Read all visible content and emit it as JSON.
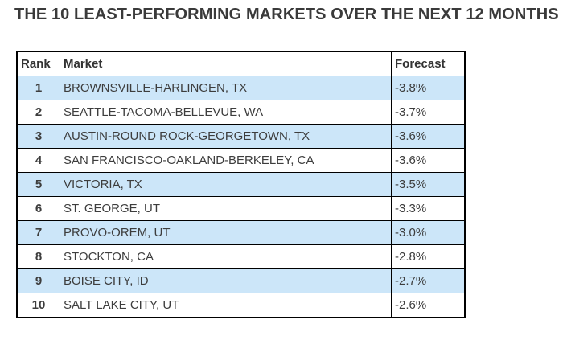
{
  "chart_data": {
    "type": "table",
    "title": "THE 10 LEAST-PERFORMING MARKETS OVER THE NEXT 12 MONTHS",
    "columns": [
      "Rank",
      "Market",
      "Forecast"
    ],
    "rows": [
      {
        "rank": "1",
        "market": "BROWNSVILLE-HARLINGEN, TX",
        "forecast": "-3.8%",
        "highlighted": true
      },
      {
        "rank": "2",
        "market": "SEATTLE-TACOMA-BELLEVUE, WA",
        "forecast": "-3.7%",
        "highlighted": false
      },
      {
        "rank": "3",
        "market": "AUSTIN-ROUND ROCK-GEORGETOWN, TX",
        "forecast": "-3.6%",
        "highlighted": true
      },
      {
        "rank": "4",
        "market": "SAN FRANCISCO-OAKLAND-BERKELEY, CA",
        "forecast": "-3.6%",
        "highlighted": false
      },
      {
        "rank": "5",
        "market": "VICTORIA, TX",
        "forecast": "-3.5%",
        "highlighted": true
      },
      {
        "rank": "6",
        "market": "ST. GEORGE, UT",
        "forecast": "-3.3%",
        "highlighted": false
      },
      {
        "rank": "7",
        "market": "PROVO-OREM, UT",
        "forecast": "-3.0%",
        "highlighted": true
      },
      {
        "rank": "8",
        "market": "STOCKTON, CA",
        "forecast": "-2.8%",
        "highlighted": false
      },
      {
        "rank": "9",
        "market": "BOISE CITY, ID",
        "forecast": "-2.7%",
        "highlighted": true
      },
      {
        "rank": "10",
        "market": "SALT LAKE CITY, UT",
        "forecast": "-2.6%",
        "highlighted": false
      }
    ]
  },
  "colors": {
    "highlight_row": "#cce6f9",
    "border": "#000000",
    "text": "#3d3d3d"
  }
}
